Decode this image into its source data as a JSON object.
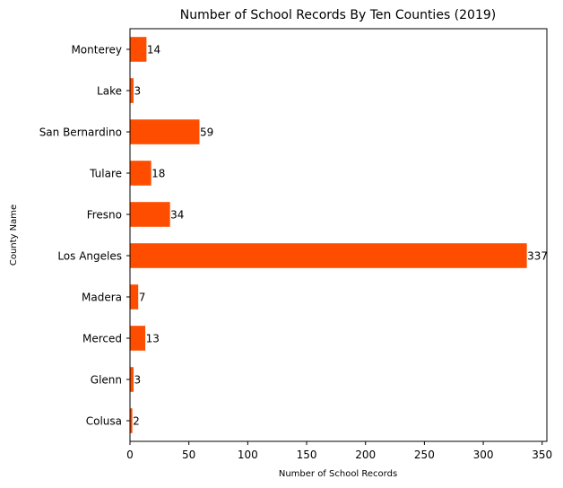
{
  "chart_data": {
    "type": "bar",
    "orientation": "horizontal",
    "title": "Number of School Records By Ten Counties (2019)",
    "xlabel": "Number of School Records",
    "ylabel": "County Name",
    "categories": [
      "Colusa",
      "Glenn",
      "Merced",
      "Madera",
      "Los Angeles",
      "Fresno",
      "Tulare",
      "San Bernardino",
      "Lake",
      "Monterey"
    ],
    "values": [
      2,
      3,
      13,
      7,
      337,
      34,
      18,
      59,
      3,
      14
    ],
    "xlim": [
      0,
      354
    ],
    "xticks": [
      0,
      50,
      100,
      150,
      200,
      250,
      300,
      350
    ],
    "bar_color": "#ff4d00",
    "grid": false,
    "data_labels": true
  }
}
